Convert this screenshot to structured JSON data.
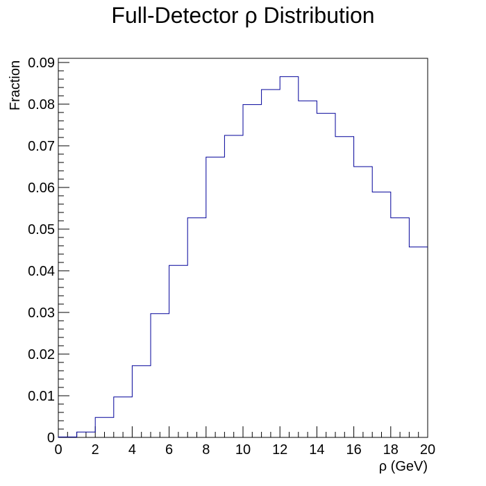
{
  "chart_data": {
    "type": "bar",
    "title": "Full-Detector ρ Distribution",
    "xlabel": "ρ (GeV)",
    "ylabel": "Fraction",
    "xlim": [
      0,
      20
    ],
    "ylim": [
      0,
      0.091
    ],
    "grid": false,
    "legend": "none",
    "bin_width": 1,
    "x_bin_edges": [
      0,
      1,
      2,
      3,
      4,
      5,
      6,
      7,
      8,
      9,
      10,
      11,
      12,
      13,
      14,
      15,
      16,
      17,
      18,
      19,
      20
    ],
    "values": [
      0.0001,
      0.0013,
      0.0048,
      0.0097,
      0.0172,
      0.0297,
      0.0413,
      0.0527,
      0.0673,
      0.0725,
      0.0799,
      0.0835,
      0.0866,
      0.0808,
      0.0778,
      0.0722,
      0.065,
      0.0589,
      0.0527,
      0.0457
    ],
    "x_ticks": [
      "0",
      "2",
      "4",
      "6",
      "8",
      "10",
      "12",
      "14",
      "16",
      "18",
      "20"
    ],
    "y_ticks": [
      "0",
      "0.01",
      "0.02",
      "0.03",
      "0.04",
      "0.05",
      "0.06",
      "0.07",
      "0.08",
      "0.09"
    ],
    "line_color": "#000099",
    "frame_color": "#000000"
  }
}
